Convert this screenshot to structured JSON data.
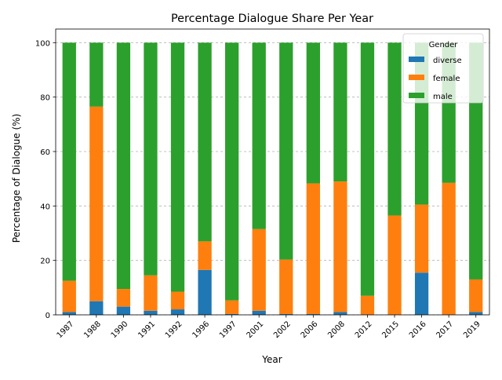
{
  "chart_data": {
    "type": "bar",
    "stacked": true,
    "title": "Percentage Dialogue Share Per Year",
    "xlabel": "Year",
    "ylabel": "Percentage of Dialogue (%)",
    "ylim": [
      0,
      105
    ],
    "yticks": [
      0,
      20,
      40,
      60,
      80,
      100
    ],
    "grid": "y",
    "legend": {
      "title": "Gender",
      "position": "top-right"
    },
    "categories": [
      "1987",
      "1988",
      "1990",
      "1991",
      "1992",
      "1996",
      "1997",
      "2001",
      "2002",
      "2006",
      "2008",
      "2012",
      "2015",
      "2016",
      "2017",
      "2019"
    ],
    "series": [
      {
        "name": "diverse",
        "color": "#1f77b4",
        "values": [
          1,
          5,
          3,
          1.5,
          2,
          16.5,
          0.3,
          1.5,
          0.3,
          0.3,
          1,
          0,
          0,
          15.5,
          0,
          1
        ]
      },
      {
        "name": "female",
        "color": "#ff7f0e",
        "values": [
          11.5,
          71.5,
          6.5,
          13,
          6.5,
          10.5,
          5,
          30,
          20,
          48,
          48,
          7,
          36.5,
          25,
          48.5,
          12
        ]
      },
      {
        "name": "male",
        "color": "#2ca02c",
        "values": [
          87.5,
          23.5,
          90.5,
          85.5,
          91.5,
          73,
          94.7,
          68.5,
          79.7,
          51.7,
          51,
          93,
          63.5,
          59.5,
          51.5,
          87
        ]
      }
    ]
  }
}
